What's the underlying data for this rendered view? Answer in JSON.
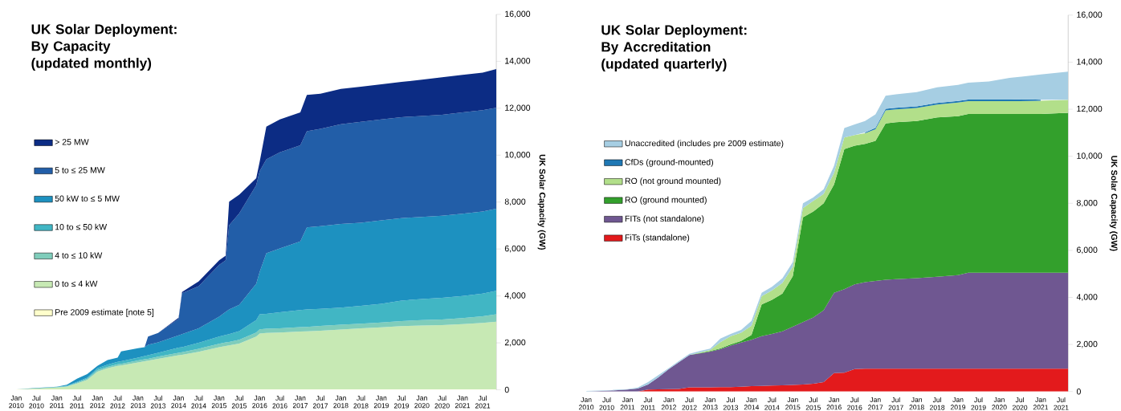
{
  "chart_data": [
    {
      "type": "area",
      "stacked": true,
      "title": "UK Solar Deployment: By Capacity",
      "subtitle": "(updated monthly)",
      "ylabel": "UK Solar Capacity (GW)",
      "legend": "left",
      "x": [
        "2010-01",
        "2010-07",
        "2011-01",
        "2011-04",
        "2011-07",
        "2011-10",
        "2012-01",
        "2012-04",
        "2012-07",
        "2012-08",
        "2013-01",
        "2013-03",
        "2013-04",
        "2013-07",
        "2014-01",
        "2014-02",
        "2014-07",
        "2015-01",
        "2015-03",
        "2015-04",
        "2015-07",
        "2015-12",
        "2016-01",
        "2016-03",
        "2016-07",
        "2017-01",
        "2017-03",
        "2017-07",
        "2018-01",
        "2018-07",
        "2019-01",
        "2019-07",
        "2020-01",
        "2020-07",
        "2021-01",
        "2021-07",
        "2021-11"
      ],
      "xlim": [
        "2010-01",
        "2021-11"
      ],
      "xticks": [
        {
          "value": "2010-01",
          "label": "Jan 2010"
        },
        {
          "value": "2010-07",
          "label": "Jul 2010"
        },
        {
          "value": "2011-01",
          "label": "Jan 2011"
        },
        {
          "value": "2011-07",
          "label": "Jul 2011"
        },
        {
          "value": "2012-01",
          "label": "Jan 2012"
        },
        {
          "value": "2012-07",
          "label": "Jul 2012"
        },
        {
          "value": "2013-01",
          "label": "Jan 2013"
        },
        {
          "value": "2013-07",
          "label": "Jul 2013"
        },
        {
          "value": "2014-01",
          "label": "Jan 2014"
        },
        {
          "value": "2014-07",
          "label": "Jul 2014"
        },
        {
          "value": "2015-01",
          "label": "Jan 2015"
        },
        {
          "value": "2015-07",
          "label": "Jul 2015"
        },
        {
          "value": "2016-01",
          "label": "Jan 2016"
        },
        {
          "value": "2016-07",
          "label": "Jul 2016"
        },
        {
          "value": "2017-01",
          "label": "Jan 2017"
        },
        {
          "value": "2017-07",
          "label": "Jul 2017"
        },
        {
          "value": "2018-01",
          "label": "Jan 2018"
        },
        {
          "value": "2018-07",
          "label": "Jul 2018"
        },
        {
          "value": "2019-01",
          "label": "Jan 2019"
        },
        {
          "value": "2019-07",
          "label": "Jul 2019"
        },
        {
          "value": "2020-01",
          "label": "Jan 2020"
        },
        {
          "value": "2020-07",
          "label": "Jul 2020"
        },
        {
          "value": "2021-01",
          "label": "Jan 2021"
        },
        {
          "value": "2021-07",
          "label": "Jul 2021"
        }
      ],
      "ylim": [
        0,
        16000
      ],
      "yticks": [
        0,
        {
          "value": 2000,
          "label": "2,000"
        },
        {
          "value": 4000,
          "label": "4,000"
        },
        {
          "value": 6000,
          "label": "6,000"
        },
        {
          "value": 8000,
          "label": "8,000"
        },
        {
          "value": 10000,
          "label": "10,000"
        },
        {
          "value": 12000,
          "label": "12,000"
        },
        {
          "value": 14000,
          "label": "14,000"
        },
        {
          "value": 16000,
          "label": "16,000"
        }
      ],
      "series": [
        {
          "name": "Pre 2009 estimate [note 5]",
          "color": "#ffffcc",
          "values": [
            20,
            20,
            20,
            20,
            20,
            20,
            20,
            20,
            20,
            20,
            20,
            20,
            20,
            20,
            20,
            20,
            20,
            20,
            20,
            20,
            20,
            20,
            20,
            20,
            20,
            20,
            20,
            20,
            20,
            20,
            20,
            20,
            20,
            20,
            20,
            20,
            20
          ]
        },
        {
          "name": "0 to ≤ 4 kW",
          "color": "#c7e9b4",
          "values": [
            0,
            40,
            80,
            120,
            250,
            400,
            750,
            900,
            1000,
            1020,
            1150,
            1200,
            1220,
            1300,
            1450,
            1470,
            1600,
            1800,
            1850,
            1870,
            1950,
            2250,
            2380,
            2400,
            2420,
            2460,
            2470,
            2500,
            2550,
            2600,
            2640,
            2690,
            2720,
            2740,
            2780,
            2830,
            2880
          ]
        },
        {
          "name": "4 to ≤ 10 kW",
          "color": "#7fcdbb",
          "values": [
            0,
            0,
            10,
            10,
            30,
            50,
            70,
            60,
            70,
            70,
            80,
            80,
            80,
            90,
            110,
            110,
            130,
            140,
            150,
            150,
            160,
            170,
            180,
            180,
            180,
            190,
            190,
            200,
            200,
            200,
            210,
            220,
            230,
            240,
            260,
            280,
            320
          ]
        },
        {
          "name": "10 to ≤ 50 kW",
          "color": "#41b6c4",
          "values": [
            0,
            0,
            10,
            20,
            40,
            50,
            80,
            90,
            100,
            110,
            120,
            140,
            150,
            170,
            220,
            220,
            250,
            310,
            320,
            330,
            370,
            530,
            640,
            640,
            680,
            730,
            740,
            730,
            730,
            760,
            790,
            870,
            900,
            920,
            940,
            970,
            1000
          ]
        },
        {
          "name": "50 kW to ≤ 5 MW",
          "color": "#1d91c0",
          "values": [
            0,
            20,
            10,
            50,
            130,
            150,
            100,
            200,
            180,
            420,
            400,
            380,
            450,
            440,
            520,
            550,
            620,
            850,
            980,
            1050,
            1120,
            1550,
            1800,
            2580,
            2720,
            2920,
            3500,
            3520,
            3570,
            3540,
            3560,
            3520,
            3500,
            3500,
            3500,
            3500,
            3500
          ]
        },
        {
          "name": "5 to ≤ 25 MW",
          "color": "#225ea8",
          "values": [
            0,
            0,
            0,
            0,
            0,
            0,
            0,
            0,
            0,
            0,
            0,
            0,
            350,
            400,
            700,
            1750,
            1800,
            2200,
            2200,
            3600,
            3900,
            4200,
            4300,
            4000,
            4100,
            4100,
            4100,
            4150,
            4250,
            4300,
            4300,
            4300,
            4300,
            4300,
            4320,
            4320,
            4300
          ]
        },
        {
          "name": "> 25 MW",
          "color": "#0c2c84",
          "values": [
            0,
            0,
            0,
            0,
            0,
            0,
            0,
            0,
            0,
            0,
            0,
            0,
            0,
            0,
            50,
            50,
            200,
            200,
            200,
            1000,
            800,
            300,
            400,
            1400,
            1400,
            1400,
            1550,
            1500,
            1500,
            1500,
            1500,
            1500,
            1550,
            1600,
            1600,
            1600,
            1650
          ]
        }
      ]
    },
    {
      "type": "area",
      "stacked": true,
      "title": "UK Solar Deployment: By Accreditation",
      "subtitle": "(updated quarterly)",
      "ylabel": "UK Solar Capacity (GW)",
      "legend": "left",
      "x": [
        "2010-01",
        "2010-07",
        "2011-01",
        "2011-04",
        "2011-07",
        "2011-10",
        "2012-01",
        "2012-04",
        "2012-07",
        "2012-10",
        "2013-01",
        "2013-04",
        "2013-07",
        "2013-10",
        "2014-01",
        "2014-04",
        "2014-07",
        "2014-10",
        "2015-01",
        "2015-04",
        "2015-07",
        "2015-10",
        "2016-01",
        "2016-04",
        "2016-07",
        "2016-10",
        "2017-01",
        "2017-04",
        "2017-07",
        "2018-01",
        "2018-07",
        "2019-01",
        "2019-04",
        "2019-10",
        "2020-04",
        "2020-10",
        "2021-01",
        "2021-09"
      ],
      "xlim": [
        "2010-01",
        "2021-09"
      ],
      "xticks": [
        {
          "value": "2010-01",
          "label": "Jan 2010"
        },
        {
          "value": "2010-07",
          "label": "Jul 2010"
        },
        {
          "value": "2011-01",
          "label": "Jan 2011"
        },
        {
          "value": "2011-07",
          "label": "Jul 2011"
        },
        {
          "value": "2012-01",
          "label": "Jan 2012"
        },
        {
          "value": "2012-07",
          "label": "Jul 2012"
        },
        {
          "value": "2013-01",
          "label": "Jan 2013"
        },
        {
          "value": "2013-07",
          "label": "Jul 2013"
        },
        {
          "value": "2014-01",
          "label": "Jan 2014"
        },
        {
          "value": "2014-07",
          "label": "Jul 2014"
        },
        {
          "value": "2015-01",
          "label": "Jan 2015"
        },
        {
          "value": "2015-07",
          "label": "Jul 2015"
        },
        {
          "value": "2016-01",
          "label": "Jan 2016"
        },
        {
          "value": "2016-07",
          "label": "Jul 2016"
        },
        {
          "value": "2017-01",
          "label": "Jan 2017"
        },
        {
          "value": "2017-07",
          "label": "Jul 2017"
        },
        {
          "value": "2018-01",
          "label": "Jan 2018"
        },
        {
          "value": "2018-07",
          "label": "Jul 2018"
        },
        {
          "value": "2019-01",
          "label": "Jan 2019"
        },
        {
          "value": "2019-07",
          "label": "Jul 2019"
        },
        {
          "value": "2020-01",
          "label": "Jan 2020"
        },
        {
          "value": "2020-07",
          "label": "Jul 2020"
        },
        {
          "value": "2021-01",
          "label": "Jan 2021"
        },
        {
          "value": "2021-07",
          "label": "Jul 2021"
        }
      ],
      "ylim": [
        0,
        16000
      ],
      "yticks": [
        0,
        {
          "value": 2000,
          "label": "2,000"
        },
        {
          "value": 4000,
          "label": "4,000"
        },
        {
          "value": 6000,
          "label": "6,000"
        },
        {
          "value": 8000,
          "label": "8,000"
        },
        {
          "value": 10000,
          "label": "10,000"
        },
        {
          "value": 12000,
          "label": "12,000"
        },
        {
          "value": 14000,
          "label": "14,000"
        },
        {
          "value": 16000,
          "label": "16,000"
        }
      ],
      "series": [
        {
          "name": "FiTs (standalone)",
          "color": "#e31a1c",
          "values": [
            0,
            0,
            0,
            0,
            80,
            90,
            100,
            110,
            180,
            180,
            180,
            190,
            190,
            200,
            230,
            240,
            250,
            260,
            280,
            300,
            330,
            400,
            780,
            800,
            950,
            970,
            970,
            970,
            970,
            970,
            970,
            970,
            970,
            970,
            970,
            970,
            970,
            970
          ]
        },
        {
          "name": "FITs (not standalone)",
          "color": "#6f5791",
          "values": [
            0,
            30,
            80,
            130,
            220,
            510,
            850,
            1140,
            1370,
            1440,
            1520,
            1610,
            1760,
            1880,
            1970,
            2110,
            2200,
            2300,
            2470,
            2650,
            2820,
            3050,
            3420,
            3550,
            3600,
            3680,
            3730,
            3780,
            3810,
            3850,
            3910,
            3980,
            4080,
            4080,
            4080,
            4080,
            4080,
            4080
          ]
        },
        {
          "name": "RO (ground mounted)",
          "color": "#33a02c",
          "values": [
            0,
            0,
            0,
            0,
            0,
            0,
            0,
            0,
            0,
            20,
            20,
            30,
            50,
            70,
            200,
            1350,
            1450,
            1600,
            2150,
            4450,
            4500,
            4550,
            4600,
            5950,
            5900,
            5880,
            5950,
            6650,
            6670,
            6680,
            6770,
            6750,
            6750,
            6750,
            6750,
            6750,
            6750,
            6800
          ]
        },
        {
          "name": "RO (not ground mounted)",
          "color": "#b2df8a",
          "values": [
            0,
            0,
            0,
            0,
            0,
            0,
            0,
            0,
            0,
            20,
            40,
            270,
            350,
            350,
            400,
            350,
            400,
            450,
            400,
            400,
            450,
            400,
            500,
            500,
            450,
            450,
            500,
            550,
            540,
            550,
            550,
            580,
            540,
            540,
            540,
            550,
            560,
            550
          ]
        },
        {
          "name": "CfDs (ground-mounted)",
          "color": "#1f78b4",
          "values": [
            null,
            null,
            null,
            null,
            null,
            null,
            null,
            null,
            null,
            null,
            null,
            null,
            null,
            null,
            null,
            null,
            null,
            null,
            null,
            null,
            null,
            null,
            null,
            null,
            null,
            30,
            60,
            70,
            70,
            70,
            70,
            70,
            70,
            70,
            70,
            70,
            40,
            null
          ]
        },
        {
          "name": "Unaccredited (includes pre 2009 estimate)",
          "color": "#a6cee3",
          "values": [
            20,
            20,
            20,
            40,
            100,
            100,
            50,
            50,
            50,
            60,
            60,
            150,
            100,
            120,
            200,
            150,
            150,
            200,
            200,
            200,
            150,
            200,
            300,
            400,
            450,
            490,
            570,
            550,
            570,
            610,
            660,
            680,
            720,
            770,
            920,
            1010,
            1080,
            1200
          ]
        }
      ]
    }
  ]
}
